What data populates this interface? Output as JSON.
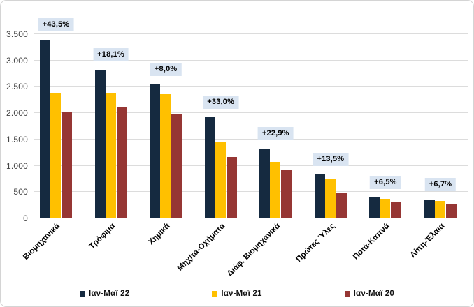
{
  "chart_data": {
    "type": "bar",
    "title": "",
    "xlabel": "",
    "ylabel": "",
    "categories": [
      "Βιομηχανικά",
      "Τρόφιμα",
      "Χημικά",
      "Μηχ/τα-Οχήματα",
      "Διάφ. Βιομηχανικά",
      "Πρώτες Ύλες",
      "Ποτά-Καπνά",
      "Λίπη-Έλαια"
    ],
    "series": [
      {
        "name": "Ιαν-Μαϊ 22",
        "color": "#152a40",
        "values": [
          3390,
          2820,
          2550,
          1920,
          1325,
          840,
          400,
          355
        ]
      },
      {
        "name": "Ιαν-Μαϊ 21",
        "color": "#ffc000",
        "values": [
          2370,
          2385,
          2360,
          1440,
          1078,
          740,
          375,
          333
        ]
      },
      {
        "name": "Ιαν-Μαϊ 20",
        "color": "#963634",
        "values": [
          2010,
          2120,
          1970,
          1170,
          925,
          480,
          320,
          265
        ]
      }
    ],
    "growth_labels": [
      "+43,5%",
      "+18,1%",
      "+8,0%",
      "+33,0%",
      "+22,9%",
      "+13,5%",
      "+6,5%",
      "+6,7%"
    ],
    "growth_label_bg": "#d9e4f1",
    "y_ticks": [
      "3.500",
      "3.000",
      "2.500",
      "2.000",
      "1.500",
      "1.000",
      "500",
      "0"
    ],
    "ylim": [
      0,
      3500
    ],
    "y_step": 500,
    "grid": true,
    "legend_position": "bottom"
  }
}
